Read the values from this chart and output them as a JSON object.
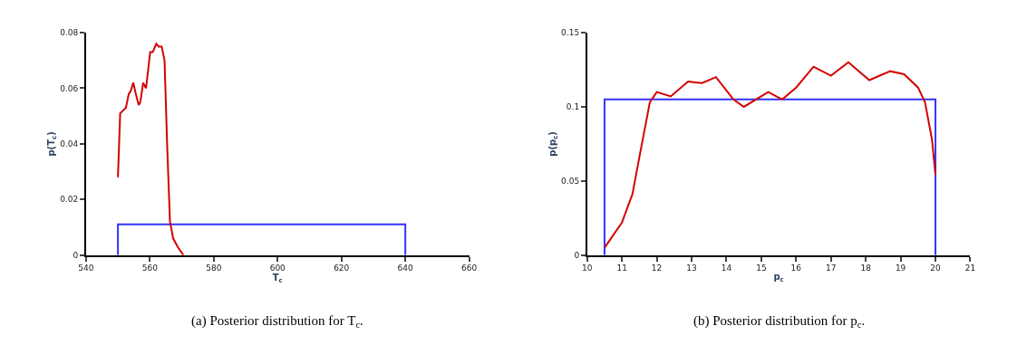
{
  "chart_data": [
    {
      "type": "line",
      "xlabel": "T$_{c}$",
      "ylabel": "p(T$_{c}$)",
      "annotations": [
        "(a) Posterior distribution for T$_{c}$."
      ],
      "xlim": [
        540,
        660
      ],
      "xticks": [
        540,
        560,
        580,
        600,
        620,
        640,
        660
      ],
      "ylim": [
        0,
        0.08
      ],
      "yticks": [
        0,
        0.02,
        0.04,
        0.06,
        0.08
      ],
      "series": [
        {
          "color": "#d40000",
          "x": [
            550,
            550.7,
            552.5,
            553.4,
            554,
            554.8,
            555.6,
            556.5,
            557,
            557.9,
            558.8,
            560.1,
            560.9,
            562,
            562.8,
            563.7,
            564.6,
            565.4,
            566.3,
            567.3,
            568.7,
            570.5
          ],
          "values": [
            0.028,
            0.051,
            0.053,
            0.058,
            0.059,
            0.062,
            0.058,
            0.054,
            0.055,
            0.062,
            0.06,
            0.073,
            0.073,
            0.076,
            0.075,
            0.075,
            0.07,
            0.04,
            0.012,
            0.006,
            0.003,
            0
          ]
        },
        {
          "color": "#3333ff",
          "x": [
            550,
            550,
            640,
            640
          ],
          "values": [
            0,
            0.0111,
            0.0111,
            0
          ]
        }
      ]
    },
    {
      "type": "line",
      "xlabel": "p$_{c}$",
      "ylabel": "p(p$_{c}$)",
      "annotations": [
        "(b) Posterior distribution for p$_{c}$."
      ],
      "xlim": [
        10,
        21
      ],
      "xticks": [
        10,
        11,
        12,
        13,
        14,
        15,
        16,
        17,
        18,
        19,
        20,
        21
      ],
      "ylim": [
        0,
        0.15
      ],
      "yticks": [
        0,
        0.05,
        0.1,
        0.15
      ],
      "series": [
        {
          "color": "#d40000",
          "x": [
            10.5,
            11,
            11.3,
            11.5,
            11.8,
            12,
            12.4,
            12.9,
            13.3,
            13.7,
            14.2,
            14.5,
            15.2,
            15.6,
            16,
            16.5,
            17,
            17.5,
            18.1,
            18.7,
            19.1,
            19.5,
            19.7,
            19.9,
            20
          ],
          "values": [
            0.005,
            0.022,
            0.041,
            0.066,
            0.103,
            0.11,
            0.107,
            0.117,
            0.116,
            0.12,
            0.105,
            0.1,
            0.11,
            0.105,
            0.113,
            0.127,
            0.121,
            0.13,
            0.118,
            0.124,
            0.122,
            0.113,
            0.103,
            0.078,
            0.054
          ]
        },
        {
          "color": "#3333ff",
          "x": [
            10.5,
            10.5,
            20,
            20
          ],
          "values": [
            0,
            0.105,
            0.105,
            0
          ]
        }
      ]
    }
  ]
}
